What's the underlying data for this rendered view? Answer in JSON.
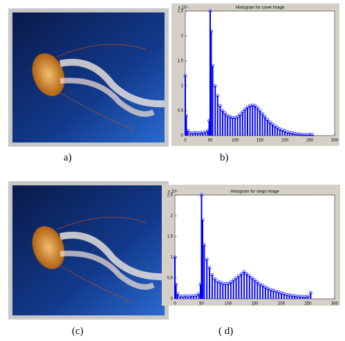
{
  "chart_data": [
    {
      "type": "stem",
      "title": "Histogram for cover image",
      "y_multiplier": "x 10⁴",
      "color": "#0000ff",
      "x": [
        0,
        2,
        5,
        10,
        15,
        20,
        25,
        30,
        35,
        40,
        45,
        48,
        50,
        52,
        55,
        60,
        65,
        70,
        75,
        80,
        85,
        90,
        95,
        100,
        105,
        110,
        115,
        120,
        125,
        130,
        135,
        140,
        145,
        150,
        155,
        160,
        165,
        170,
        175,
        180,
        185,
        190,
        195,
        200,
        205,
        210,
        215,
        220,
        225,
        230,
        235,
        240,
        245,
        250,
        255
      ],
      "values": [
        1.2,
        0.4,
        0.1,
        0.05,
        0.05,
        0.06,
        0.05,
        0.06,
        0.06,
        0.07,
        0.1,
        0.3,
        2.5,
        2.1,
        1.4,
        1.0,
        0.8,
        0.6,
        0.5,
        0.45,
        0.4,
        0.38,
        0.36,
        0.36,
        0.38,
        0.42,
        0.48,
        0.53,
        0.57,
        0.6,
        0.61,
        0.6,
        0.56,
        0.5,
        0.44,
        0.38,
        0.32,
        0.27,
        0.23,
        0.19,
        0.16,
        0.13,
        0.11,
        0.09,
        0.07,
        0.06,
        0.05,
        0.04,
        0.03,
        0.03,
        0.02,
        0.02,
        0.02,
        0.02,
        0.02
      ],
      "xlim": [
        0,
        300
      ],
      "xticks": [
        0,
        50,
        100,
        150,
        200,
        250,
        300
      ],
      "ylim": [
        0,
        2.5
      ],
      "yticks": [
        0,
        0.5,
        1,
        1.5,
        2,
        2.5
      ]
    },
    {
      "type": "stem",
      "title": "Histogram for stego image",
      "y_multiplier": "x 10⁴",
      "color": "#0000ff",
      "x": [
        0,
        2,
        5,
        10,
        15,
        20,
        25,
        30,
        35,
        40,
        45,
        48,
        50,
        52,
        55,
        60,
        65,
        70,
        75,
        80,
        85,
        90,
        95,
        100,
        105,
        110,
        115,
        120,
        125,
        130,
        135,
        140,
        145,
        150,
        155,
        160,
        165,
        170,
        175,
        180,
        185,
        190,
        195,
        200,
        205,
        210,
        215,
        220,
        225,
        230,
        235,
        240,
        245,
        250,
        255
      ],
      "values": [
        1.0,
        0.35,
        0.12,
        0.06,
        0.06,
        0.07,
        0.06,
        0.07,
        0.07,
        0.08,
        0.12,
        0.35,
        2.5,
        1.9,
        1.3,
        0.95,
        0.75,
        0.58,
        0.48,
        0.42,
        0.4,
        0.37,
        0.36,
        0.37,
        0.4,
        0.45,
        0.5,
        0.55,
        0.6,
        0.65,
        0.6,
        0.55,
        0.5,
        0.45,
        0.4,
        0.35,
        0.32,
        0.28,
        0.25,
        0.22,
        0.2,
        0.18,
        0.16,
        0.14,
        0.12,
        0.1,
        0.09,
        0.08,
        0.07,
        0.06,
        0.06,
        0.05,
        0.05,
        0.06,
        0.15
      ],
      "xlim": [
        0,
        300
      ],
      "xticks": [
        0,
        50,
        100,
        150,
        200,
        250,
        300
      ],
      "ylim": [
        0,
        2.5
      ],
      "yticks": [
        0,
        0.5,
        1,
        1.5,
        2,
        2.5
      ]
    }
  ],
  "captions": [
    "a)",
    "b)",
    "(c)",
    "( d)"
  ]
}
